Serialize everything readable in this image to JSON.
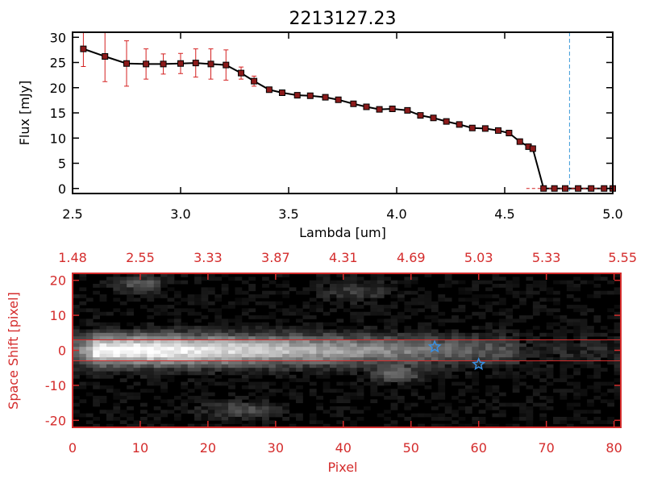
{
  "chart_data": [
    {
      "type": "line",
      "title": "2213127.23",
      "xlabel": "Lambda [um]",
      "ylabel": "Flux [mJy]",
      "xlim": [
        2.5,
        5.0
      ],
      "ylim": [
        -1,
        31
      ],
      "x_ticks": [
        "2.5",
        "3.0",
        "3.5",
        "4.0",
        "4.5",
        "5.0"
      ],
      "y_ticks": [
        "0",
        "5",
        "10",
        "15",
        "20",
        "25",
        "30"
      ],
      "vline_x": 4.8,
      "colors": {
        "line": "#000000",
        "marker": "#8b1a1a",
        "error": "#d42020",
        "vline": "#3a9ad9"
      },
      "series": [
        {
          "x": [
            2.55,
            2.65,
            2.75,
            2.84,
            2.92,
            3.0,
            3.07,
            3.14,
            3.21,
            3.28,
            3.34,
            3.41,
            3.47,
            3.54,
            3.6,
            3.67,
            3.73,
            3.8,
            3.86,
            3.92,
            3.98,
            4.05,
            4.11,
            4.17,
            4.23,
            4.29,
            4.35,
            4.41,
            4.47,
            4.52,
            4.57,
            4.61,
            4.63,
            4.68,
            4.73,
            4.78,
            4.84,
            4.9,
            4.96,
            5.0
          ],
          "y": [
            27.7,
            26.2,
            24.8,
            24.7,
            24.7,
            24.8,
            24.9,
            24.7,
            24.5,
            22.9,
            21.3,
            19.6,
            19.0,
            18.5,
            18.4,
            18.1,
            17.6,
            16.8,
            16.2,
            15.7,
            15.8,
            15.5,
            14.5,
            14.0,
            13.3,
            12.7,
            12.0,
            11.9,
            11.5,
            11.0,
            9.3,
            8.3,
            7.9,
            0,
            0,
            0,
            0,
            0,
            0,
            0
          ],
          "err": [
            3.5,
            5.0,
            4.5,
            3.0,
            2.0,
            2.0,
            2.8,
            3.0,
            3.0,
            1.2,
            1.0,
            0,
            0,
            0,
            0,
            0,
            0,
            0,
            0,
            0,
            0,
            0,
            0,
            0,
            0,
            0,
            0,
            0,
            0,
            0,
            0,
            0,
            0,
            0,
            0,
            0,
            0,
            0,
            0,
            0
          ]
        }
      ]
    },
    {
      "type": "heatmap",
      "xlabel": "Pixel",
      "ylabel": "Space Shift [pixel]",
      "xlim": [
        0,
        81
      ],
      "ylim": [
        -22,
        22
      ],
      "x_ticks": [
        "0",
        "10",
        "20",
        "30",
        "40",
        "50",
        "60",
        "70",
        "80"
      ],
      "y_ticks": [
        "20",
        "10",
        "0",
        "-10",
        "-20"
      ],
      "top_ticks": [
        "1.48",
        "2.55",
        "3.33",
        "3.87",
        "4.31",
        "4.69",
        "5.03",
        "5.33",
        "5.55"
      ],
      "hlines_y": [
        3,
        -3
      ],
      "markers": [
        {
          "x": 53.5,
          "y": 1
        },
        {
          "x": 60,
          "y": -4
        }
      ],
      "colors": {
        "axis": "#d42c2c",
        "hline": "#d42c2c",
        "marker": "#3a8fe0"
      }
    }
  ]
}
